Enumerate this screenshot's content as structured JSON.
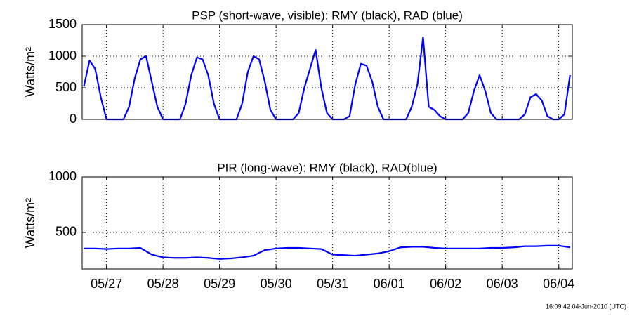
{
  "chart_data": [
    {
      "type": "line",
      "title": "PSP (short-wave, visible): RMY (black), RAD (blue)",
      "ylabel": "Watts/m²",
      "color": "#0000ff",
      "grid": true,
      "xlim": [
        26.57,
        35.24
      ],
      "xticks": [
        27,
        28,
        29,
        30,
        31,
        32,
        33,
        34,
        35
      ],
      "ylim": [
        0,
        1500
      ],
      "yticks": [
        0,
        500,
        1000,
        1500
      ],
      "x": [
        26.6,
        26.7,
        26.8,
        26.9,
        27.0,
        27.1,
        27.2,
        27.3,
        27.4,
        27.5,
        27.6,
        27.7,
        27.8,
        27.9,
        28.0,
        28.1,
        28.2,
        28.3,
        28.4,
        28.5,
        28.6,
        28.7,
        28.8,
        28.9,
        29.0,
        29.1,
        29.2,
        29.3,
        29.4,
        29.5,
        29.6,
        29.7,
        29.8,
        29.9,
        30.0,
        30.1,
        30.2,
        30.3,
        30.4,
        30.5,
        30.6,
        30.7,
        30.8,
        30.9,
        31.0,
        31.1,
        31.2,
        31.3,
        31.4,
        31.5,
        31.6,
        31.7,
        31.8,
        31.9,
        32.0,
        32.1,
        32.2,
        32.3,
        32.4,
        32.5,
        32.6,
        32.7,
        32.8,
        32.9,
        33.0,
        33.1,
        33.2,
        33.3,
        33.4,
        33.5,
        33.6,
        33.7,
        33.8,
        33.9,
        34.0,
        34.1,
        34.2,
        34.3,
        34.4,
        34.5,
        34.6,
        34.7,
        34.8,
        34.9,
        35.0,
        35.1,
        35.2
      ],
      "values": [
        520,
        930,
        800,
        350,
        0,
        0,
        0,
        0,
        200,
        650,
        950,
        1000,
        600,
        200,
        0,
        0,
        0,
        0,
        250,
        700,
        980,
        950,
        700,
        250,
        0,
        0,
        0,
        0,
        250,
        750,
        1000,
        950,
        600,
        150,
        0,
        0,
        0,
        0,
        100,
        500,
        800,
        1100,
        500,
        100,
        0,
        0,
        0,
        50,
        550,
        880,
        850,
        600,
        200,
        0,
        0,
        0,
        0,
        0,
        200,
        550,
        1300,
        200,
        150,
        50,
        0,
        0,
        0,
        0,
        100,
        450,
        700,
        450,
        100,
        0,
        0,
        0,
        0,
        0,
        80,
        350,
        400,
        300,
        50,
        0,
        0,
        80,
        700
      ]
    },
    {
      "type": "line",
      "title": "PIR (long-wave): RMY (black), RAD(blue)",
      "ylabel": "Watts/m²",
      "color": "#0000ff",
      "grid": true,
      "xlim": [
        26.57,
        35.24
      ],
      "xticks": [
        {
          "value": 27,
          "label": "05/27"
        },
        {
          "value": 28,
          "label": "05/28"
        },
        {
          "value": 29,
          "label": "05/29"
        },
        {
          "value": 30,
          "label": "05/30"
        },
        {
          "value": 31,
          "label": "05/31"
        },
        {
          "value": 32,
          "label": "06/01"
        },
        {
          "value": 33,
          "label": "06/02"
        },
        {
          "value": 34,
          "label": "06/03"
        },
        {
          "value": 35,
          "label": "06/04"
        }
      ],
      "ylim": [
        170,
        1000
      ],
      "yticks": [
        500,
        1000
      ],
      "x": [
        26.6,
        26.8,
        27.0,
        27.2,
        27.4,
        27.6,
        27.8,
        28.0,
        28.2,
        28.4,
        28.6,
        28.8,
        29.0,
        29.2,
        29.4,
        29.6,
        29.8,
        30.0,
        30.2,
        30.4,
        30.6,
        30.8,
        31.0,
        31.2,
        31.4,
        31.6,
        31.8,
        32.0,
        32.2,
        32.4,
        32.6,
        32.8,
        33.0,
        33.2,
        33.4,
        33.6,
        33.8,
        34.0,
        34.2,
        34.4,
        34.6,
        34.8,
        35.0,
        35.2
      ],
      "values": [
        355,
        355,
        350,
        355,
        355,
        360,
        300,
        275,
        270,
        270,
        275,
        270,
        260,
        265,
        275,
        290,
        340,
        355,
        360,
        360,
        355,
        350,
        300,
        295,
        290,
        300,
        310,
        330,
        365,
        370,
        370,
        360,
        355,
        355,
        355,
        355,
        360,
        360,
        365,
        375,
        375,
        380,
        380,
        365
      ]
    }
  ],
  "footer": "16:09:42 04-Jun-2010 (UTC)"
}
